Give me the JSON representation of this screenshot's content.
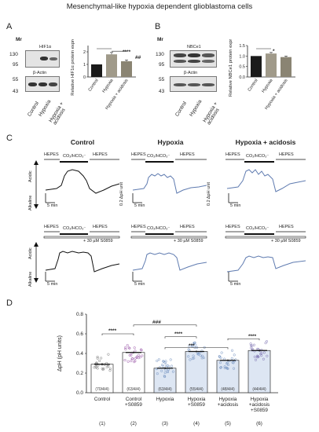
{
  "figure_title": "Mesenchymal-like hypoxia dependent glioblastoma cells",
  "panels": {
    "A": {
      "label": "A",
      "mr_label": "Mr",
      "markers_top": [
        "130",
        "95"
      ],
      "markers_bottom": [
        "55",
        "43"
      ],
      "blot_top": "HIF1α",
      "blot_bottom": "β-Actin",
      "lanes": [
        "Control",
        "Hypoxia",
        "Hypoxia + acidosis"
      ],
      "sig1": "****",
      "sig2": "##"
    },
    "B": {
      "label": "B",
      "mr_label": "Mr",
      "markers_top": [
        "130",
        "95"
      ],
      "markers_bottom": [
        "55",
        "43"
      ],
      "blot_top": "NBCe1",
      "blot_bottom": "β-Actin",
      "lanes": [
        "Control",
        "Hypoxia",
        "Hypoxia + acidosis"
      ],
      "sig1": "*"
    },
    "C": {
      "label": "C",
      "columns": [
        "Control",
        "Hypoxia",
        "Hypoxia + acidosis"
      ],
      "hepes": "HEPES",
      "co2": "CO₂/HCO₃⁻",
      "s0859": "+ 30 µM S0859",
      "acidic": "Acidic",
      "alkaline": "Alkaline",
      "scale_y": "0.2 ΔpH unit",
      "scale_x": "5 min"
    },
    "D": {
      "label": "D",
      "sig_a": "****",
      "sig_b": "###",
      "sig_c": "****",
      "sig_d": "***",
      "sig_e": "****",
      "group_numbers": [
        "(1)",
        "(2)",
        "(3)",
        "(4)",
        "(5)",
        "(6)"
      ]
    }
  },
  "chart_data": [
    {
      "type": "bar",
      "panel": "A",
      "categories": [
        "Control",
        "Hypoxia",
        "Hypoxia + acidosis"
      ],
      "values": [
        1.0,
        1.8,
        1.25
      ],
      "errors": [
        0.0,
        0.15,
        0.1
      ],
      "ylabel": "Relative HIF1α protein expression",
      "ylim": [
        0,
        2.5
      ],
      "yticks": [
        "0",
        "1",
        "2"
      ],
      "colors": [
        "#1a1a1a",
        "#a09a8a",
        "#8a8473"
      ]
    },
    {
      "type": "bar",
      "panel": "B",
      "categories": [
        "Control",
        "Hypoxia",
        "Hypoxia + acidosis"
      ],
      "values": [
        1.0,
        1.12,
        0.95
      ],
      "errors": [
        0.0,
        0.05,
        0.05
      ],
      "ylabel": "Relative NBCe1 protein expression",
      "ylim": [
        0,
        1.5
      ],
      "yticks": [
        "0.0",
        "0.5",
        "1.0",
        "1.5"
      ],
      "colors": [
        "#1a1a1a",
        "#a09a8a",
        "#8a8473"
      ]
    },
    {
      "type": "bar",
      "panel": "D",
      "categories": [
        "Control",
        "Control +S0859",
        "Hypoxia",
        "Hypoxia +S0859",
        "Hypoxia +acidosis",
        "Hypoxia +acidosis +S0859"
      ],
      "values": [
        0.29,
        0.41,
        0.25,
        0.42,
        0.33,
        0.43
      ],
      "errors": [
        0.01,
        0.01,
        0.01,
        0.01,
        0.01,
        0.01
      ],
      "n_labels": [
        "(70/4/4)",
        "(63/4/4)",
        "(63/4/4)",
        "(55/4/4)",
        "(48/4/4)",
        "(44/4/4)"
      ],
      "ylabel": "ΔpH (pH units)",
      "ylim": [
        0,
        0.8
      ],
      "yticks": [
        "0.0",
        "0.2",
        "0.4",
        "0.6",
        "0.8"
      ],
      "dot_colors": [
        "#7a7a7a",
        "#9a56a8",
        "#6f8fbf",
        "#6f8fbf",
        "#6f8fbf",
        "#7a6fb0"
      ],
      "fill_colors": [
        "#ffffff",
        "#ffffff",
        "#dde6f3",
        "#dde6f3",
        "#dde6f3",
        "#dde6f3"
      ]
    }
  ]
}
